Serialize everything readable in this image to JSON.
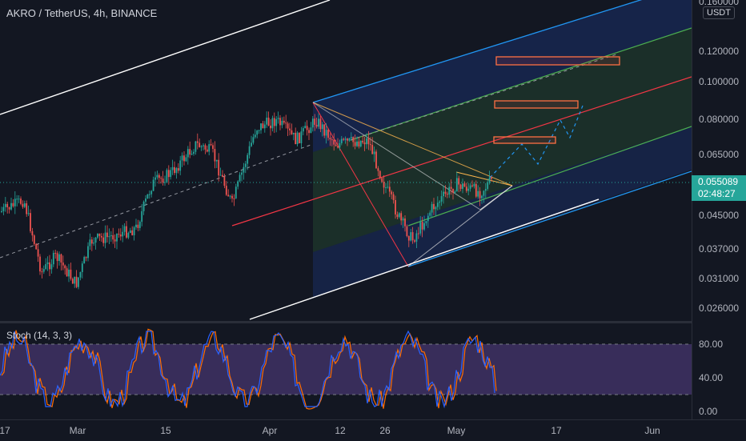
{
  "chart": {
    "symbol_title": "AKRO / TetherUS, 4h, BINANCE",
    "currency": "USDT",
    "last_price": "0.055089",
    "countdown": "02:48:27",
    "price_axis": [
      {
        "value": 0.16,
        "label": "0.160000"
      },
      {
        "value": 0.12,
        "label": "0.120000"
      },
      {
        "value": 0.1,
        "label": "0.100000"
      },
      {
        "value": 0.08,
        "label": "0.080000"
      },
      {
        "value": 0.065,
        "label": "0.065000"
      },
      {
        "value": 0.045,
        "label": "0.045000"
      },
      {
        "value": 0.037,
        "label": "0.037000"
      },
      {
        "value": 0.031,
        "label": "0.031000"
      },
      {
        "value": 0.026,
        "label": "0.026000"
      }
    ],
    "time_axis": [
      "17",
      "Mar",
      "15",
      "Apr",
      "12",
      "26",
      "May",
      "17",
      "Jun"
    ],
    "stoch_title": "Stoch (14, 3, 3)",
    "stoch_axis": [
      "80.00",
      "40.00",
      "0.00"
    ]
  },
  "colors": {
    "background": "#131722",
    "candle_up": "#26a69a",
    "candle_down": "#ef5350",
    "channel_outer": "#2962ff",
    "channel_inner": "#4caf50",
    "median": "#f23645",
    "stoch_k": "#2962ff",
    "stoch_d": "#ff6d00",
    "stoch_band": "#7e57c2"
  }
}
